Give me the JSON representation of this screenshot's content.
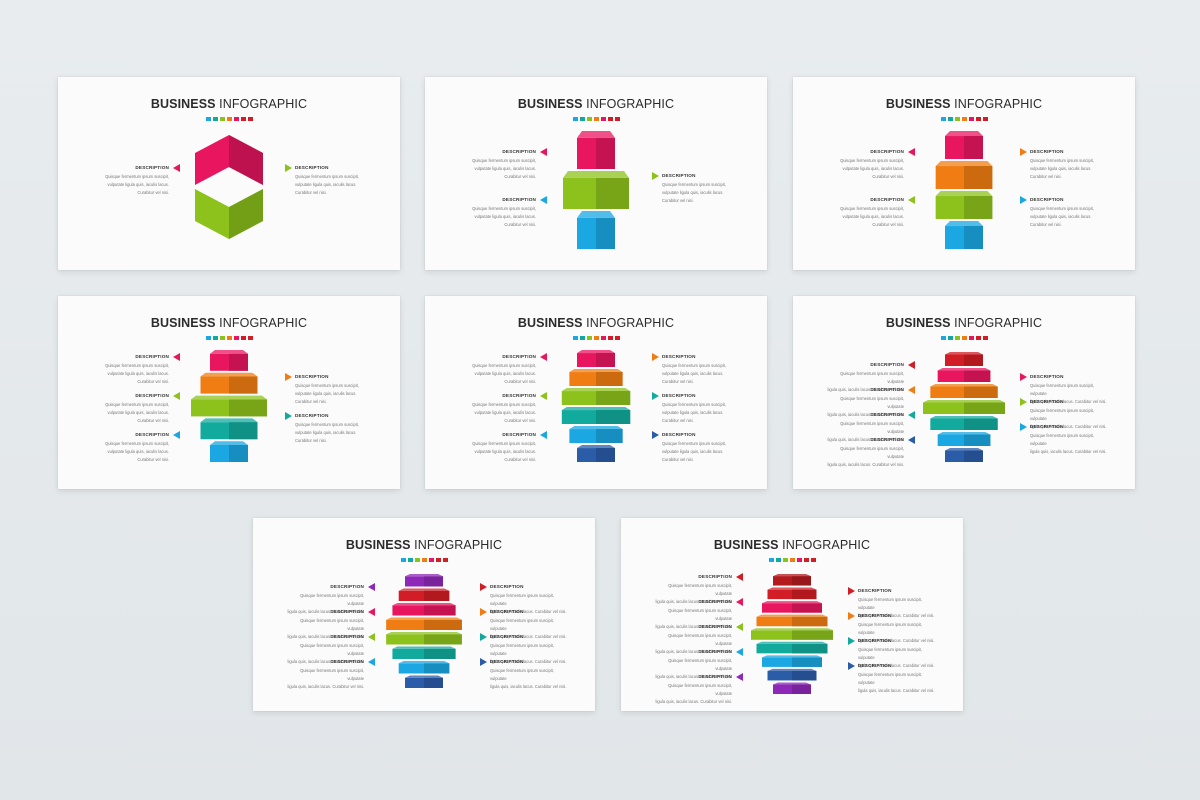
{
  "colors": {
    "pink": "#e8165f",
    "lime": "#8cc21b",
    "sky": "#1aa7e2",
    "orange": "#f07d13",
    "teal": "#13aa9e",
    "navy": "#2a5ca8",
    "red": "#d11d25",
    "purple": "#8d28b8"
  },
  "slides": [
    {
      "title_bold": "BUSINESS",
      "title_light": "INFOGRAPHIC",
      "swatches": [
        "#1aa7e2",
        "#13aa9e",
        "#8cc21b",
        "#f07d13",
        "#e8165f",
        "#d11d25",
        "#d11d25"
      ],
      "items": [
        {
          "side": "left",
          "label": "DESCRIPTION",
          "body": "Quisque fermentum ipsum suscipit,\nvulputate ligula quis, iaculis lacus.\nCurabitur vel nisi.",
          "color": "#e8165f"
        },
        {
          "side": "right",
          "label": "DESCRIPTION",
          "body": "Quisque fermentum ipsum suscipit,\nvulputate ligula quis, iaculis lacus.\nCurabitur vel nisi.",
          "color": "#8cc21b"
        }
      ]
    },
    {
      "title_bold": "BUSINESS",
      "title_light": "INFOGRAPHIC",
      "swatches": [
        "#1aa7e2",
        "#13aa9e",
        "#8cc21b",
        "#f07d13",
        "#e8165f",
        "#d11d25",
        "#d11d25"
      ],
      "items": [
        {
          "side": "left",
          "label": "DESCRIPTION",
          "body": "Quisque fermentum ipsum suscipit,\nvulputate ligula quis, iaculis lacus.\nCurabitur vel nisi.",
          "color": "#e8165f"
        },
        {
          "side": "left",
          "label": "DESCRIPTION",
          "body": "Quisque fermentum ipsum suscipit,\nvulputate ligula quis, iaculis lacus.\nCurabitur vel nisi.",
          "color": "#1aa7e2"
        },
        {
          "side": "right",
          "label": "DESCRIPTION",
          "body": "Quisque fermentum ipsum suscipit,\nvulputate ligula quis, iaculis lacus.\nCurabitur vel nisi.",
          "color": "#8cc21b"
        }
      ]
    },
    {
      "title_bold": "BUSINESS",
      "title_light": "INFOGRAPHIC",
      "swatches": [
        "#1aa7e2",
        "#13aa9e",
        "#8cc21b",
        "#f07d13",
        "#e8165f",
        "#d11d25",
        "#d11d25"
      ],
      "items": [
        {
          "side": "left",
          "label": "DESCRIPTION",
          "body": "Quisque fermentum ipsum suscipit,\nvulputate ligula quis, iaculis lacus.\nCurabitur vel nisi.",
          "color": "#e8165f"
        },
        {
          "side": "left",
          "label": "DESCRIPTION",
          "body": "Quisque fermentum ipsum suscipit,\nvulputate ligula quis, iaculis lacus.\nCurabitur vel nisi.",
          "color": "#8cc21b"
        },
        {
          "side": "right",
          "label": "DESCRIPTION",
          "body": "Quisque fermentum ipsum suscipit,\nvulputate ligula quis, iaculis lacus.\nCurabitur vel nisi.",
          "color": "#f07d13"
        },
        {
          "side": "right",
          "label": "DESCRIPTION",
          "body": "Quisque fermentum ipsum suscipit,\nvulputate ligula quis, iaculis lacus.\nCurabitur vel nisi.",
          "color": "#1aa7e2"
        }
      ]
    },
    {
      "title_bold": "BUSINESS",
      "title_light": "INFOGRAPHIC",
      "swatches": [
        "#1aa7e2",
        "#13aa9e",
        "#8cc21b",
        "#f07d13",
        "#e8165f",
        "#d11d25",
        "#d11d25"
      ],
      "items": [
        {
          "side": "left",
          "label": "DESCRIPTION",
          "body": "Quisque fermentum ipsum suscipit,\nvulputate ligula quis, iaculis lacus.\nCurabitur vel nisi.",
          "color": "#e8165f"
        },
        {
          "side": "left",
          "label": "DESCRIPTION",
          "body": "Quisque fermentum ipsum suscipit,\nvulputate ligula quis, iaculis lacus.\nCurabitur vel nisi.",
          "color": "#8cc21b"
        },
        {
          "side": "left",
          "label": "DESCRIPTION",
          "body": "Quisque fermentum ipsum suscipit,\nvulputate ligula quis, iaculis lacus.\nCurabitur vel nisi.",
          "color": "#1aa7e2"
        },
        {
          "side": "right",
          "label": "DESCRIPTION",
          "body": "Quisque fermentum ipsum suscipit,\nvulputate ligula quis, iaculis lacus.\nCurabitur vel nisi.",
          "color": "#f07d13"
        },
        {
          "side": "right",
          "label": "DESCRIPTION",
          "body": "Quisque fermentum ipsum suscipit,\nvulputate ligula quis, iaculis lacus.\nCurabitur vel nisi.",
          "color": "#13aa9e"
        }
      ]
    },
    {
      "title_bold": "BUSINESS",
      "title_light": "INFOGRAPHIC",
      "swatches": [
        "#1aa7e2",
        "#13aa9e",
        "#8cc21b",
        "#f07d13",
        "#e8165f",
        "#d11d25",
        "#d11d25"
      ],
      "items": [
        {
          "side": "left",
          "label": "DESCRIPTION",
          "body": "Quisque fermentum ipsum suscipit,\nvulputate ligula quis, iaculis lacus.\nCurabitur vel nisi.",
          "color": "#e8165f"
        },
        {
          "side": "left",
          "label": "DESCRIPTION",
          "body": "Quisque fermentum ipsum suscipit,\nvulputate ligula quis, iaculis lacus.\nCurabitur vel nisi.",
          "color": "#8cc21b"
        },
        {
          "side": "left",
          "label": "DESCRIPTION",
          "body": "Quisque fermentum ipsum suscipit,\nvulputate ligula quis, iaculis lacus.\nCurabitur vel nisi.",
          "color": "#1aa7e2"
        },
        {
          "side": "right",
          "label": "DESCRIPTION",
          "body": "Quisque fermentum ipsum suscipit,\nvulputate ligula quis, iaculis lacus.\nCurabitur vel nisi.",
          "color": "#f07d13"
        },
        {
          "side": "right",
          "label": "DESCRIPTION",
          "body": "Quisque fermentum ipsum suscipit,\nvulputate ligula quis, iaculis lacus.\nCurabitur vel nisi.",
          "color": "#13aa9e"
        },
        {
          "side": "right",
          "label": "DESCRIPTION",
          "body": "Quisque fermentum ipsum suscipit,\nvulputate ligula quis, iaculis lacus.\nCurabitur vel nisi.",
          "color": "#2a5ca8"
        }
      ]
    },
    {
      "title_bold": "BUSINESS",
      "title_light": "INFOGRAPHIC",
      "swatches": [
        "#1aa7e2",
        "#13aa9e",
        "#8cc21b",
        "#f07d13",
        "#e8165f",
        "#d11d25",
        "#d11d25"
      ],
      "items": [
        {
          "side": "left",
          "label": "DESCRIPTION",
          "body": "Quisque fermentum ipsum suscipit, vulputate\nligula quis, iaculis lacus. Curabitur vel nisi.",
          "color": "#d11d25"
        },
        {
          "side": "left",
          "label": "DESCRIPTION",
          "body": "Quisque fermentum ipsum suscipit, vulputate\nligula quis, iaculis lacus. Curabitur vel nisi.",
          "color": "#f07d13"
        },
        {
          "side": "left",
          "label": "DESCRIPTION",
          "body": "Quisque fermentum ipsum suscipit, vulputate\nligula quis, iaculis lacus. Curabitur vel nisi.",
          "color": "#13aa9e"
        },
        {
          "side": "left",
          "label": "DESCRIPTION",
          "body": "Quisque fermentum ipsum suscipit, vulputate\nligula quis, iaculis lacus. Curabitur vel nisi.",
          "color": "#2a5ca8"
        },
        {
          "side": "right",
          "label": "DESCRIPTION",
          "body": "Quisque fermentum ipsum suscipit, vulputate\nligula quis, iaculis lacus. Curabitur vel nisi.",
          "color": "#e8165f"
        },
        {
          "side": "right",
          "label": "DESCRIPTION",
          "body": "Quisque fermentum ipsum suscipit, vulputate\nligula quis, iaculis lacus. Curabitur vel nisi.",
          "color": "#8cc21b"
        },
        {
          "side": "right",
          "label": "DESCRIPTION",
          "body": "Quisque fermentum ipsum suscipit, vulputate\nligula quis, iaculis lacus. Curabitur vel nisi.",
          "color": "#1aa7e2"
        }
      ]
    },
    {
      "title_bold": "BUSINESS",
      "title_light": "INFOGRAPHIC",
      "swatches": [
        "#1aa7e2",
        "#13aa9e",
        "#8cc21b",
        "#f07d13",
        "#e8165f",
        "#d11d25",
        "#d11d25"
      ],
      "items": [
        {
          "side": "left",
          "label": "DESCRIPTION",
          "body": "Quisque fermentum ipsum suscipit, vulputate\nligula quis, iaculis lacus. Curabitur vel nisi.",
          "color": "#8d28b8"
        },
        {
          "side": "left",
          "label": "DESCRIPTION",
          "body": "Quisque fermentum ipsum suscipit, vulputate\nligula quis, iaculis lacus. Curabitur vel nisi.",
          "color": "#e8165f"
        },
        {
          "side": "left",
          "label": "DESCRIPTION",
          "body": "Quisque fermentum ipsum suscipit, vulputate\nligula quis, iaculis lacus. Curabitur vel nisi.",
          "color": "#8cc21b"
        },
        {
          "side": "left",
          "label": "DESCRIPTION",
          "body": "Quisque fermentum ipsum suscipit, vulputate\nligula quis, iaculis lacus. Curabitur vel nisi.",
          "color": "#1aa7e2"
        },
        {
          "side": "right",
          "label": "DESCRIPTION",
          "body": "Quisque fermentum ipsum suscipit, vulputate\nligula quis, iaculis lacus. Curabitur vel nisi.",
          "color": "#d11d25"
        },
        {
          "side": "right",
          "label": "DESCRIPTION",
          "body": "Quisque fermentum ipsum suscipit, vulputate\nligula quis, iaculis lacus. Curabitur vel nisi.",
          "color": "#f07d13"
        },
        {
          "side": "right",
          "label": "DESCRIPTION",
          "body": "Quisque fermentum ipsum suscipit, vulputate\nligula quis, iaculis lacus. Curabitur vel nisi.",
          "color": "#13aa9e"
        },
        {
          "side": "right",
          "label": "DESCRIPTION",
          "body": "Quisque fermentum ipsum suscipit, vulputate\nligula quis, iaculis lacus. Curabitur vel nisi.",
          "color": "#2a5ca8"
        }
      ]
    },
    {
      "title_bold": "BUSINESS",
      "title_light": "INFOGRAPHIC",
      "swatches": [
        "#1aa7e2",
        "#13aa9e",
        "#8cc21b",
        "#f07d13",
        "#e8165f",
        "#d11d25",
        "#d11d25"
      ],
      "items": [
        {
          "side": "left",
          "label": "DESCRIPTION",
          "body": "Quisque fermentum ipsum suscipit, vulputate\nligula quis, iaculis lacus. Curabitur vel nisi.",
          "color": "#d11d25"
        },
        {
          "side": "left",
          "label": "DESCRIPTION",
          "body": "Quisque fermentum ipsum suscipit, vulputate\nligula quis, iaculis lacus. Curabitur vel nisi.",
          "color": "#e8165f"
        },
        {
          "side": "left",
          "label": "DESCRIPTION",
          "body": "Quisque fermentum ipsum suscipit, vulputate\nligula quis, iaculis lacus. Curabitur vel nisi.",
          "color": "#8cc21b"
        },
        {
          "side": "left",
          "label": "DESCRIPTION",
          "body": "Quisque fermentum ipsum suscipit, vulputate\nligula quis, iaculis lacus. Curabitur vel nisi.",
          "color": "#1aa7e2"
        },
        {
          "side": "left",
          "label": "DESCRIPTION",
          "body": "Quisque fermentum ipsum suscipit, vulputate\nligula quis, iaculis lacus. Curabitur vel nisi.",
          "color": "#8d28b8"
        },
        {
          "side": "right",
          "label": "DESCRIPTION",
          "body": "Quisque fermentum ipsum suscipit, vulputate\nligula quis, iaculis lacus. Curabitur vel nisi.",
          "color": "#d11d25"
        },
        {
          "side": "right",
          "label": "DESCRIPTION",
          "body": "Quisque fermentum ipsum suscipit, vulputate\nligula quis, iaculis lacus. Curabitur vel nisi.",
          "color": "#f07d13"
        },
        {
          "side": "right",
          "label": "DESCRIPTION",
          "body": "Quisque fermentum ipsum suscipit, vulputate\nligula quis, iaculis lacus. Curabitur vel nisi.",
          "color": "#13aa9e"
        },
        {
          "side": "right",
          "label": "DESCRIPTION",
          "body": "Quisque fermentum ipsum suscipit, vulputate\nligula quis, iaculis lacus. Curabitur vel nisi.",
          "color": "#2a5ca8"
        }
      ]
    }
  ],
  "stacks": [
    [
      "#e8165f",
      "#8cc21b"
    ],
    [
      "#e8165f",
      "#8cc21b",
      "#1aa7e2"
    ],
    [
      "#e8165f",
      "#f07d13",
      "#8cc21b",
      "#1aa7e2"
    ],
    [
      "#e8165f",
      "#f07d13",
      "#8cc21b",
      "#13aa9e",
      "#1aa7e2"
    ],
    [
      "#e8165f",
      "#f07d13",
      "#8cc21b",
      "#13aa9e",
      "#1aa7e2",
      "#2a5ca8"
    ],
    [
      "#d11d25",
      "#e8165f",
      "#f07d13",
      "#8cc21b",
      "#13aa9e",
      "#1aa7e2",
      "#2a5ca8"
    ],
    [
      "#8d28b8",
      "#d11d25",
      "#e8165f",
      "#f07d13",
      "#8cc21b",
      "#13aa9e",
      "#1aa7e2",
      "#2a5ca8"
    ],
    [
      "#b31b1f",
      "#d11d25",
      "#e8165f",
      "#f07d13",
      "#8cc21b",
      "#13aa9e",
      "#1aa7e2",
      "#2a5ca8",
      "#8d28b8"
    ]
  ]
}
